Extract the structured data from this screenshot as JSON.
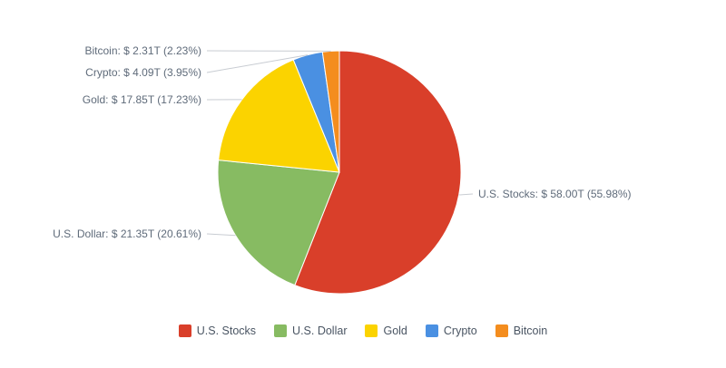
{
  "chart_data": {
    "type": "pie",
    "categories": [
      "U.S. Stocks",
      "U.S. Dollar",
      "Gold",
      "Crypto",
      "Bitcoin"
    ],
    "values": [
      58.0,
      21.35,
      17.85,
      4.09,
      2.31
    ],
    "percentages": [
      55.98,
      20.61,
      17.23,
      3.95,
      2.23
    ],
    "slice_labels": [
      "U.S. Stocks: $ 58.00T (55.98%)",
      "U.S. Dollar: $ 21.35T (20.61%)",
      "Gold: $ 17.85T (17.23%)",
      "Crypto: $ 4.09T (3.95%)",
      "Bitcoin: $ 2.31T (2.23%)"
    ],
    "colors": [
      "#d93f2a",
      "#87bb62",
      "#fbd300",
      "#4a90e2",
      "#f48d1e"
    ],
    "start_angle_deg": 0,
    "direction": "clockwise",
    "legend_position": "bottom"
  }
}
